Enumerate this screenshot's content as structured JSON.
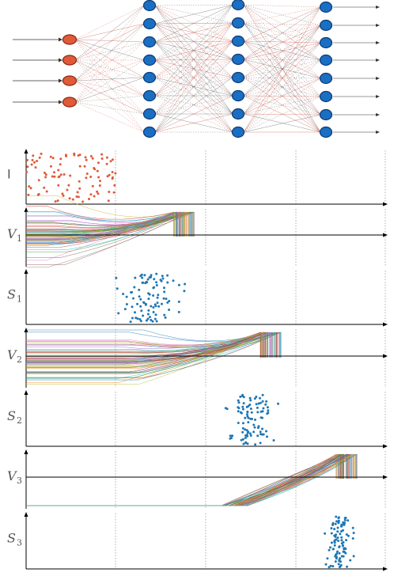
{
  "network": {
    "layers": [
      {
        "name": "input",
        "neurons": 4,
        "color": "#e05a3a",
        "stroke": "#8a2a10"
      },
      {
        "name": "hidden-1",
        "neurons": 8,
        "color": "#1a6fc2",
        "stroke": "#0b3a78"
      },
      {
        "name": "hidden-2",
        "neurons": 8,
        "color": "#1a6fc2",
        "stroke": "#0b3a78"
      },
      {
        "name": "output",
        "neurons": 8,
        "color": "#1a6fc2",
        "stroke": "#0b3a78"
      }
    ],
    "input_arrows": 4,
    "output_arrows": 8,
    "connection_colors": [
      "#4a4a4a",
      "#c0392b"
    ]
  },
  "panels": [
    {
      "id": "I",
      "label": "I",
      "sub": "",
      "kind": "raster",
      "color": "#e05a3a"
    },
    {
      "id": "V1",
      "label": "V",
      "sub": "1",
      "kind": "traces"
    },
    {
      "id": "S1",
      "label": "S",
      "sub": "1",
      "kind": "raster",
      "color": "#1f77b4"
    },
    {
      "id": "V2",
      "label": "V",
      "sub": "2",
      "kind": "traces"
    },
    {
      "id": "S2",
      "label": "S",
      "sub": "2",
      "kind": "raster",
      "color": "#1f77b4"
    },
    {
      "id": "V3",
      "label": "V",
      "sub": "3",
      "kind": "traces"
    },
    {
      "id": "S3",
      "label": "S",
      "sub": "3",
      "kind": "raster",
      "color": "#1f77b4"
    }
  ],
  "time_axis": {
    "gridlines": 4,
    "spike_windows": {
      "I": [
        0.0,
        0.25
      ],
      "S1": [
        0.25,
        0.46
      ],
      "S2": [
        0.54,
        0.7
      ],
      "S3": [
        0.83,
        0.91
      ]
    },
    "threshold_rise": {
      "V1": [
        0.05,
        0.46
      ],
      "V2": [
        0.25,
        0.7
      ],
      "V3": [
        0.54,
        0.91
      ]
    }
  },
  "colors": {
    "axis": "#000000",
    "grid": "#9a9a9a",
    "trace_palette": [
      "#1f77b4",
      "#ff7f0e",
      "#2ca02c",
      "#d62728",
      "#9467bd",
      "#8c564b",
      "#e377c2",
      "#7f7f7f",
      "#bcbd22",
      "#17becf"
    ]
  }
}
